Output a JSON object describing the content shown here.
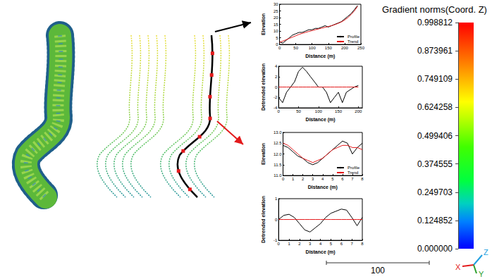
{
  "chart_data": [
    {
      "type": "line",
      "x_label": "Distance (m)",
      "y_label": "Elevation",
      "x": [
        0,
        10,
        20,
        30,
        40,
        50,
        60,
        70,
        80,
        90,
        100,
        110,
        120,
        130,
        140,
        150,
        160,
        170,
        180,
        190,
        200,
        210,
        220,
        230,
        240
      ],
      "series": [
        {
          "name": "Profile",
          "color": "#000000",
          "values": [
            2,
            1,
            3,
            5,
            7,
            8,
            9,
            9,
            10,
            11,
            11,
            12,
            12,
            13,
            14,
            13,
            14,
            15,
            16,
            17,
            19,
            21,
            23,
            26,
            29
          ]
        },
        {
          "name": "Trend",
          "color": "#e31a1c",
          "values": [
            1.5,
            2.5,
            3.5,
            4.5,
            5.5,
            6.5,
            7.5,
            8.3,
            9,
            9.7,
            10.3,
            11,
            11.6,
            12.2,
            12.8,
            13.4,
            14,
            14.8,
            15.7,
            16.8,
            18.2,
            20,
            22.3,
            25,
            28.5
          ]
        }
      ],
      "xlim": [
        0,
        250
      ],
      "xticks": [
        0,
        50,
        100,
        150,
        200,
        250
      ],
      "ylim": [
        0,
        30
      ],
      "yticks": [
        0,
        5,
        10,
        15,
        20,
        25,
        30
      ],
      "legend": "lower right",
      "grid": false
    },
    {
      "type": "line",
      "x_label": "Distance (m)",
      "y_label": "Detrended elevation",
      "x": [
        0,
        10,
        20,
        30,
        40,
        50,
        60,
        70,
        80,
        90,
        100,
        110,
        120,
        130,
        140,
        150,
        160,
        170,
        180,
        190,
        200
      ],
      "series": [
        {
          "color": "#000000",
          "values": [
            -2,
            -3,
            -1,
            0,
            1,
            3,
            3.8,
            3,
            2,
            1,
            0,
            0,
            -1,
            -3,
            -2,
            -1,
            -3,
            -1,
            -0.5,
            0,
            0.3
          ]
        },
        {
          "color": "#e31a1c",
          "values": [
            0,
            0,
            0,
            0,
            0,
            0,
            0,
            0,
            0,
            0,
            0,
            0,
            0,
            0,
            0,
            0,
            0,
            0,
            0,
            0,
            0
          ]
        }
      ],
      "xlim": [
        0,
        210
      ],
      "xticks": [
        0,
        50,
        100,
        150,
        200
      ],
      "ylim": [
        -4,
        4
      ],
      "yticks": [
        -4,
        -2,
        0,
        2,
        4
      ],
      "grid": false
    },
    {
      "type": "line",
      "x_label": "Distance (m)",
      "y_label": "Elevation",
      "x": [
        0,
        0.5,
        1,
        1.5,
        2,
        2.5,
        3,
        3.5,
        4,
        4.5,
        5,
        5.5,
        6,
        6.5,
        7,
        7.5,
        8
      ],
      "series": [
        {
          "name": "Profile",
          "color": "#000000",
          "values": [
            12.4,
            12.3,
            12.1,
            11.9,
            11.8,
            11.6,
            11.5,
            11.6,
            11.8,
            12.0,
            12.2,
            12.4,
            12.6,
            12.5,
            12.0,
            12.3,
            12.5
          ]
        },
        {
          "name": "Trend",
          "color": "#e31a1c",
          "values": [
            12.5,
            12.4,
            12.2,
            12.0,
            11.8,
            11.7,
            11.6,
            11.7,
            11.8,
            12.0,
            12.2,
            12.3,
            12.4,
            12.4,
            12.3,
            12.3,
            12.2
          ]
        }
      ],
      "xlim": [
        0,
        8
      ],
      "xticks": [
        0,
        1,
        2,
        3,
        4,
        5,
        6,
        7,
        8
      ],
      "ylim": [
        11,
        13
      ],
      "yticks": [
        {
          "value": 11,
          "label": "11.0"
        },
        11.5,
        {
          "value": 12,
          "label": "12.0"
        },
        12.5,
        {
          "value": 13,
          "label": "13.0"
        }
      ],
      "legend": "lower right",
      "grid": false
    },
    {
      "type": "line",
      "x_label": "Distance (m)",
      "y_label": "Detrended elevation",
      "x": [
        0,
        0.5,
        1,
        1.5,
        2,
        2.5,
        3,
        3.5,
        4,
        4.5,
        5,
        5.5,
        6,
        6.5,
        7,
        7.5,
        8
      ],
      "series": [
        {
          "color": "#000000",
          "values": [
            0,
            0.2,
            0.25,
            0.1,
            -0.2,
            -0.5,
            -0.6,
            -0.4,
            -0.2,
            0.1,
            0.3,
            0.4,
            0.5,
            0.45,
            0.1,
            -0.3,
            0.1
          ]
        },
        {
          "color": "#e31a1c",
          "values": [
            0,
            0,
            0,
            0,
            0,
            0,
            0,
            0,
            0,
            0,
            0,
            0,
            0,
            0,
            0,
            0,
            0
          ]
        }
      ],
      "xlim": [
        0,
        8
      ],
      "xticks": [
        0,
        1,
        2,
        3,
        4,
        5,
        6,
        7,
        8
      ],
      "ylim": [
        -1,
        1
      ],
      "yticks": [
        -1,
        0,
        1
      ],
      "grid": false
    }
  ],
  "colorbar": {
    "title": "Gradient norms(Coord. Z)",
    "range": [
      0,
      0.998812
    ],
    "ticks": [
      {
        "value": 0,
        "label": "0.000000"
      },
      0.124852,
      0.249703,
      0.374555,
      0.499406,
      0.624258,
      0.749109,
      0.873961,
      0.998812
    ]
  },
  "scale_bar": {
    "value": 100
  },
  "axes_triad": {
    "x": "X",
    "y": "Y",
    "z": "Z"
  }
}
